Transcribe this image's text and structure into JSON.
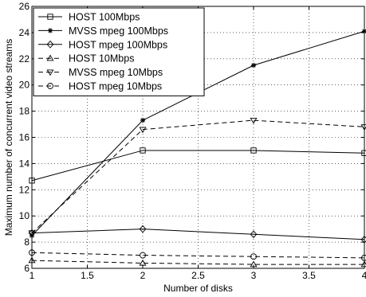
{
  "chart_data": {
    "type": "line",
    "xlabel": "Number of disks",
    "ylabel": "Maximum number of concurrent video streams",
    "xlim": [
      1,
      4
    ],
    "ylim": [
      6,
      26
    ],
    "xticks": [
      "1",
      "1.5",
      "2",
      "2.5",
      "3",
      "3.5",
      "4"
    ],
    "yticks": [
      "6",
      "8",
      "10",
      "12",
      "14",
      "16",
      "18",
      "20",
      "22",
      "24",
      "26"
    ],
    "grid": true,
    "legend_position": "top-left",
    "series": [
      {
        "name": "HOST 100Mbps",
        "marker": "square",
        "dash": "solid",
        "x": [
          1,
          2,
          3,
          4
        ],
        "values": [
          12.7,
          15.0,
          15.0,
          14.8
        ]
      },
      {
        "name": "MVSS mpeg 100Mbps",
        "marker": "star",
        "dash": "solid",
        "x": [
          1,
          2,
          3,
          4
        ],
        "values": [
          8.5,
          17.3,
          21.5,
          24.1
        ]
      },
      {
        "name": "HOST mpeg 100Mbps",
        "marker": "diamond",
        "dash": "solid",
        "x": [
          1,
          2,
          3,
          4
        ],
        "values": [
          8.7,
          9.0,
          8.6,
          8.2
        ]
      },
      {
        "name": "HOST 10Mbps",
        "marker": "triangle-up",
        "dash": "dashed",
        "x": [
          1,
          2,
          3,
          4
        ],
        "values": [
          6.6,
          6.4,
          6.3,
          6.3
        ]
      },
      {
        "name": "MVSS mpeg 10Mbps",
        "marker": "triangle-down",
        "dash": "dashed",
        "x": [
          1,
          2,
          3,
          4
        ],
        "values": [
          8.7,
          16.6,
          17.3,
          16.8
        ]
      },
      {
        "name": "HOST mpeg 10Mbps",
        "marker": "circle",
        "dash": "dashed",
        "x": [
          1,
          2,
          3,
          4
        ],
        "values": [
          7.2,
          7.0,
          6.9,
          6.8
        ]
      }
    ]
  }
}
